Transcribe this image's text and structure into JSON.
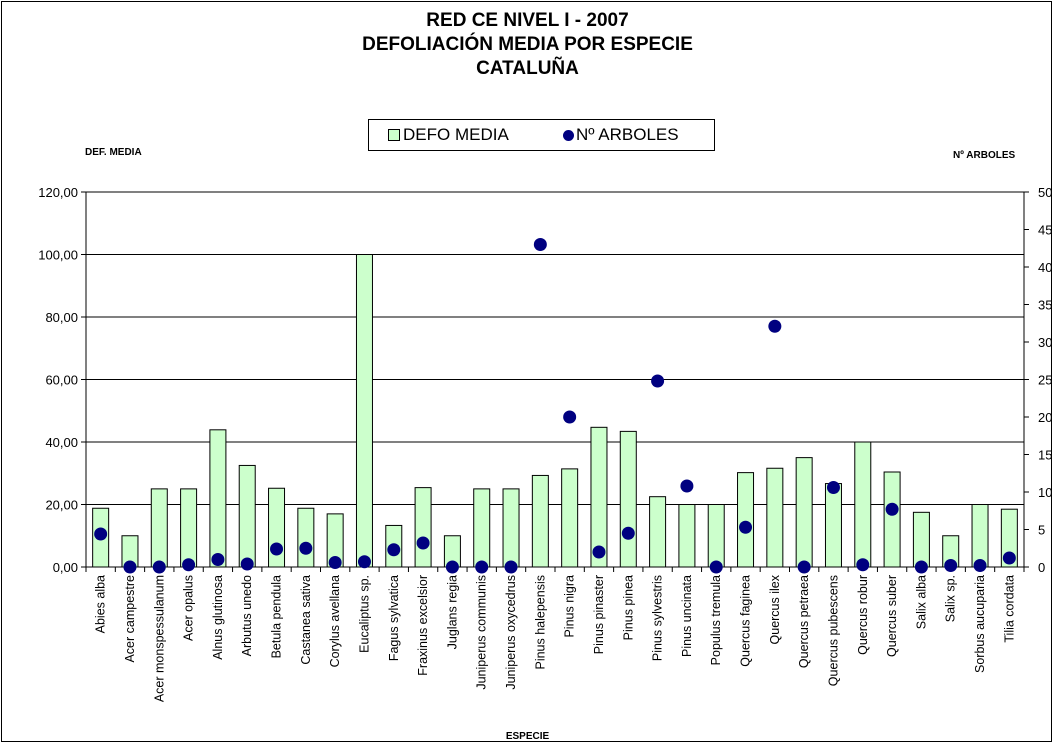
{
  "colors": {
    "bar_fill": "#ccffcc",
    "bar_stroke": "#000000",
    "marker": "#000080",
    "grid": "#000000",
    "background": "#ffffff"
  },
  "chart_data": {
    "type": "bar",
    "title_lines": [
      "RED CE NIVEL I - 2007",
      "DEFOLIACIÓN MEDIA POR ESPECIE",
      "CATALUÑA"
    ],
    "xlabel": "ESPECIE",
    "ylabel": "DEF. MEDIA",
    "y2label": "Nº ARBOLES",
    "ylim": [
      0,
      120
    ],
    "y2lim": [
      0,
      50
    ],
    "yticks": [
      "0,00",
      "20,00",
      "40,00",
      "60,00",
      "80,00",
      "100,00",
      "120,00"
    ],
    "y2ticks": [
      "0",
      "5",
      "10",
      "15",
      "20",
      "25",
      "30",
      "35",
      "40",
      "45",
      "50"
    ],
    "grid": "horizontal major lines",
    "legend_position": "top-center",
    "legend": [
      "DEFO MEDIA",
      "Nº ARBOLES"
    ],
    "categories": [
      "Abies alba",
      "Acer campestre",
      "Acer monspessulanum",
      "Acer opalus",
      "Alnus glutinosa",
      "Arbutus unedo",
      "Betula pendula",
      "Castanea sativa",
      "Corylus avellana",
      "Eucaliptus sp.",
      "Fagus sylvatica",
      "Fraxinus excelsior",
      "Juglans regia",
      "Juniperus communis",
      "Juniperus oxycedrus",
      "Pinus halepensis",
      "Pinus nigra",
      "Pinus pinaster",
      "Pinus pinea",
      "Pinus sylvestris",
      "Pinus uncinata",
      "Populus tremula",
      "Quercus faginea",
      "Quercus ilex",
      "Quercus petraea",
      "Quercus pubescens",
      "Quercus robur",
      "Quercus suber",
      "Salix alba",
      "Salix sp.",
      "Sorbus aucuparia",
      "Tilia cordata"
    ],
    "series": [
      {
        "name": "DEFO MEDIA",
        "type": "bar",
        "axis": "left",
        "values": [
          18.8,
          10,
          25,
          25,
          43.9,
          32.5,
          25.2,
          18.8,
          17,
          100,
          13.3,
          25.4,
          10,
          25,
          25,
          29.3,
          31.4,
          44.7,
          43.4,
          22.5,
          20,
          20,
          30.2,
          31.6,
          35,
          26.7,
          40,
          30.4,
          17.5,
          10,
          20,
          18.5
        ]
      },
      {
        "name": "Nº ARBOLES",
        "type": "scatter",
        "axis": "right",
        "values": [
          4.4,
          0,
          0,
          0.3,
          1,
          0.4,
          2.4,
          2.5,
          0.6,
          0.7,
          2.3,
          3.2,
          0,
          0,
          0,
          43,
          20,
          2,
          4.5,
          24.8,
          10.8,
          0,
          5.3,
          32.1,
          0,
          10.6,
          0.3,
          7.7,
          0,
          0.2,
          0.2,
          1.2
        ]
      }
    ]
  }
}
